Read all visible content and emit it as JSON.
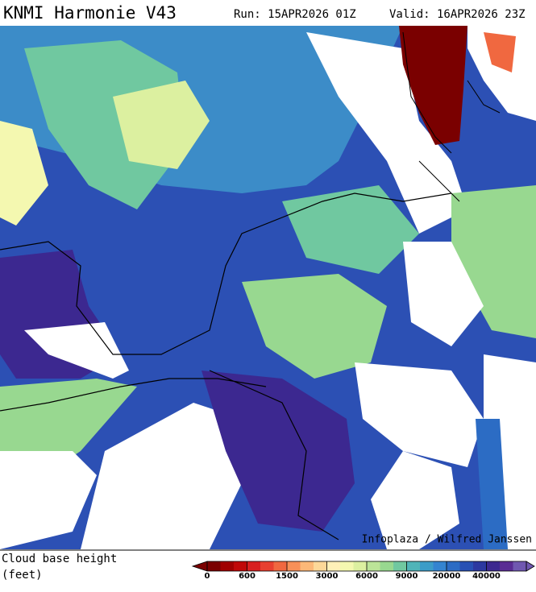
{
  "header": {
    "title": "KNMI Harmonie V43",
    "run": "Run: 15APR2026 01Z",
    "valid": "Valid: 16APR2026 23Z"
  },
  "map": {
    "credit": "Infoplaza / Wilfred Janssen"
  },
  "legend": {
    "label_line1": "Cloud base height",
    "label_line2": "(feet)",
    "colors": [
      "#7a0000",
      "#a00000",
      "#c00808",
      "#d82020",
      "#e84030",
      "#f06840",
      "#f89058",
      "#fcb878",
      "#fdd898",
      "#fff0b8",
      "#f4f8b0",
      "#dcf0a0",
      "#bce498",
      "#98d890",
      "#70c8a0",
      "#50b4b8",
      "#3c9cc8",
      "#3484d0",
      "#2c6cc4",
      "#2850b4",
      "#2c38a0",
      "#3c2890",
      "#5a2c94",
      "#7058b0"
    ],
    "ticks": [
      0,
      600,
      1500,
      3000,
      6000,
      9000,
      20000,
      40000
    ]
  }
}
